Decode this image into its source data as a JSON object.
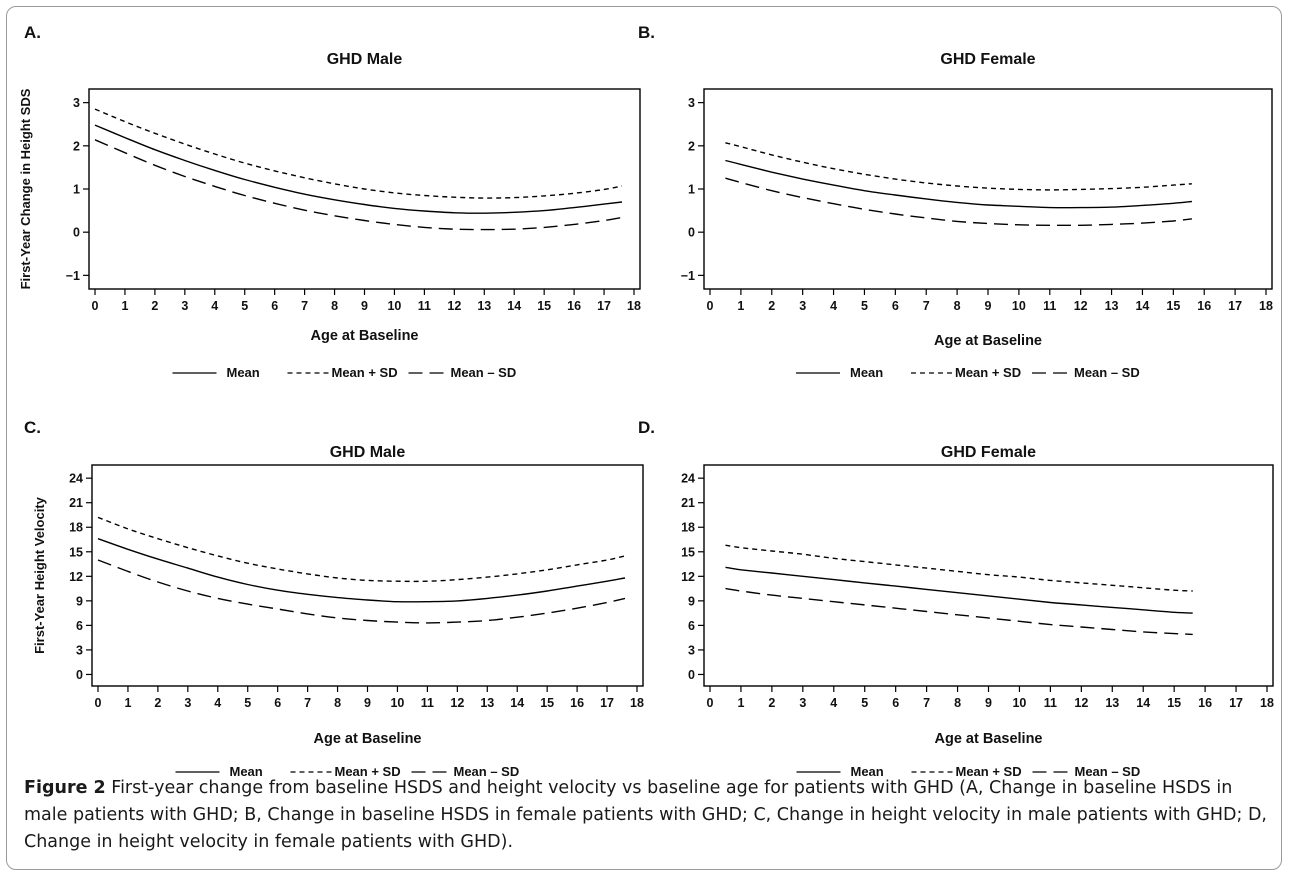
{
  "figure": {
    "caption_label": "Figure 2",
    "caption_text": " First-year change from baseline HSDS and height velocity vs baseline age for patients with GHD (A, Change in baseline HSDS in male patients with GHD; B, Change in baseline HSDS in female patients with GHD; C, Change in height velocity in male patients with GHD; D, Change in height velocity in female patients with GHD)."
  },
  "chart_data": [
    {
      "type": "line",
      "panel": "A.",
      "title": "GHD Male",
      "xlabel": "Age at Baseline",
      "ylabel": "First-Year Change in Height SDS",
      "xlim": [
        0,
        18
      ],
      "ylim": [
        -1.2,
        3.2
      ],
      "xticks": [
        0,
        1,
        2,
        3,
        4,
        5,
        6,
        7,
        8,
        9,
        10,
        11,
        12,
        13,
        14,
        15,
        16,
        17,
        18
      ],
      "yticks": [
        -1,
        0,
        1,
        2,
        3
      ],
      "legend": [
        "Mean",
        "Mean + SD",
        "Mean – SD"
      ],
      "legend_position": "bottom",
      "grid": false,
      "series": [
        {
          "name": "Mean",
          "dash": "solid",
          "x": [
            0,
            1,
            2,
            3,
            4,
            5,
            6,
            7,
            8,
            9,
            10,
            11,
            12,
            13,
            14,
            15,
            16,
            17,
            17.6
          ],
          "y": [
            2.48,
            2.19,
            1.91,
            1.66,
            1.43,
            1.22,
            1.04,
            0.88,
            0.75,
            0.64,
            0.55,
            0.49,
            0.45,
            0.44,
            0.46,
            0.5,
            0.57,
            0.65,
            0.7
          ]
        },
        {
          "name": "Mean + SD",
          "dash": "short",
          "x": [
            0,
            1,
            2,
            3,
            4,
            5,
            6,
            7,
            8,
            9,
            10,
            11,
            12,
            13,
            14,
            15,
            16,
            17,
            17.6
          ],
          "y": [
            2.85,
            2.56,
            2.29,
            2.04,
            1.81,
            1.6,
            1.42,
            1.26,
            1.12,
            1.0,
            0.91,
            0.85,
            0.81,
            0.79,
            0.8,
            0.84,
            0.9,
            0.99,
            1.07
          ]
        },
        {
          "name": "Mean – SD",
          "dash": "long",
          "x": [
            0,
            1,
            2,
            3,
            4,
            5,
            6,
            7,
            8,
            9,
            10,
            11,
            12,
            13,
            14,
            15,
            16,
            17,
            17.6
          ],
          "y": [
            2.14,
            1.84,
            1.55,
            1.29,
            1.06,
            0.85,
            0.67,
            0.51,
            0.38,
            0.27,
            0.18,
            0.11,
            0.07,
            0.06,
            0.07,
            0.11,
            0.18,
            0.27,
            0.34
          ]
        }
      ]
    },
    {
      "type": "line",
      "panel": "B.",
      "title": "GHD Female",
      "xlabel": "Age at Baseline",
      "ylabel": "",
      "xlim": [
        0,
        18
      ],
      "ylim": [
        -1.2,
        3.2
      ],
      "xticks": [
        0,
        1,
        2,
        3,
        4,
        5,
        6,
        7,
        8,
        9,
        10,
        11,
        12,
        13,
        14,
        15,
        16,
        17,
        18
      ],
      "yticks": [
        -1,
        0,
        1,
        2,
        3
      ],
      "legend": [
        "Mean",
        "Mean + SD",
        "Mean – SD"
      ],
      "legend_position": "bottom",
      "grid": false,
      "series": [
        {
          "name": "Mean",
          "dash": "solid",
          "x": [
            0.5,
            1,
            2,
            3,
            4,
            5,
            6,
            7,
            8,
            9,
            10,
            11,
            12,
            13,
            14,
            15,
            15.6
          ],
          "y": [
            1.66,
            1.57,
            1.39,
            1.23,
            1.09,
            0.96,
            0.86,
            0.77,
            0.69,
            0.63,
            0.6,
            0.57,
            0.57,
            0.58,
            0.62,
            0.67,
            0.71
          ]
        },
        {
          "name": "Mean + SD",
          "dash": "short",
          "x": [
            0.5,
            1,
            2,
            3,
            4,
            5,
            6,
            7,
            8,
            9,
            10,
            11,
            12,
            13,
            14,
            15,
            15.6
          ],
          "y": [
            2.07,
            1.98,
            1.79,
            1.62,
            1.47,
            1.34,
            1.23,
            1.14,
            1.07,
            1.02,
            0.99,
            0.98,
            0.99,
            1.01,
            1.04,
            1.09,
            1.12
          ]
        },
        {
          "name": "Mean – SD",
          "dash": "long",
          "x": [
            0.5,
            1,
            2,
            3,
            4,
            5,
            6,
            7,
            8,
            9,
            10,
            11,
            12,
            13,
            14,
            15,
            15.6
          ],
          "y": [
            1.25,
            1.15,
            0.96,
            0.8,
            0.66,
            0.53,
            0.42,
            0.33,
            0.25,
            0.2,
            0.17,
            0.16,
            0.16,
            0.18,
            0.21,
            0.26,
            0.31
          ]
        }
      ]
    },
    {
      "type": "line",
      "panel": "C.",
      "title": "GHD Male",
      "xlabel": "Age at Baseline",
      "ylabel": "First-Year Height Velocity",
      "xlim": [
        0,
        18
      ],
      "ylim": [
        -0.8,
        25
      ],
      "xticks": [
        0,
        1,
        2,
        3,
        4,
        5,
        6,
        7,
        8,
        9,
        10,
        11,
        12,
        13,
        14,
        15,
        16,
        17,
        18
      ],
      "yticks": [
        0,
        3,
        6,
        9,
        12,
        15,
        18,
        21,
        24
      ],
      "legend": [
        "Mean",
        "Mean + SD",
        "Mean – SD"
      ],
      "legend_position": "bottom",
      "grid": false,
      "series": [
        {
          "name": "Mean",
          "dash": "solid",
          "x": [
            0,
            1,
            2,
            3,
            4,
            5,
            6,
            7,
            8,
            9,
            10,
            11,
            12,
            13,
            14,
            15,
            16,
            17,
            17.6
          ],
          "y": [
            16.6,
            15.3,
            14.1,
            13.0,
            11.9,
            11.0,
            10.3,
            9.8,
            9.4,
            9.1,
            8.9,
            8.9,
            9.0,
            9.3,
            9.7,
            10.2,
            10.8,
            11.4,
            11.8
          ]
        },
        {
          "name": "Mean + SD",
          "dash": "short",
          "x": [
            0,
            1,
            2,
            3,
            4,
            5,
            6,
            7,
            8,
            9,
            10,
            11,
            12,
            13,
            14,
            15,
            16,
            17,
            17.6
          ],
          "y": [
            19.2,
            17.8,
            16.6,
            15.5,
            14.5,
            13.6,
            12.9,
            12.3,
            11.8,
            11.5,
            11.4,
            11.4,
            11.6,
            11.9,
            12.3,
            12.8,
            13.4,
            14.0,
            14.5
          ]
        },
        {
          "name": "Mean – SD",
          "dash": "long",
          "x": [
            0,
            1,
            2,
            3,
            4,
            5,
            6,
            7,
            8,
            9,
            10,
            11,
            12,
            13,
            14,
            15,
            16,
            17,
            17.6
          ],
          "y": [
            14.0,
            12.6,
            11.3,
            10.2,
            9.3,
            8.6,
            8.0,
            7.4,
            6.9,
            6.6,
            6.4,
            6.3,
            6.4,
            6.6,
            7.0,
            7.5,
            8.1,
            8.8,
            9.3
          ]
        }
      ]
    },
    {
      "type": "line",
      "panel": "D.",
      "title": "GHD Female",
      "xlabel": "Age at Baseline",
      "ylabel": "",
      "xlim": [
        0,
        18
      ],
      "ylim": [
        -0.8,
        25
      ],
      "xticks": [
        0,
        1,
        2,
        3,
        4,
        5,
        6,
        7,
        8,
        9,
        10,
        11,
        12,
        13,
        14,
        15,
        16,
        17,
        18
      ],
      "yticks": [
        0,
        3,
        6,
        9,
        12,
        15,
        18,
        21,
        24
      ],
      "legend": [
        "Mean",
        "Mean + SD",
        "Mean – SD"
      ],
      "legend_position": "bottom",
      "grid": false,
      "series": [
        {
          "name": "Mean",
          "dash": "solid",
          "x": [
            0.5,
            1,
            2,
            3,
            4,
            5,
            6,
            7,
            8,
            9,
            10,
            11,
            12,
            13,
            14,
            15,
            15.6
          ],
          "y": [
            13.1,
            12.8,
            12.4,
            12.0,
            11.6,
            11.2,
            10.8,
            10.4,
            10.0,
            9.6,
            9.2,
            8.8,
            8.5,
            8.2,
            7.9,
            7.6,
            7.5
          ]
        },
        {
          "name": "Mean + SD",
          "dash": "short",
          "x": [
            0.5,
            1,
            2,
            3,
            4,
            5,
            6,
            7,
            8,
            9,
            10,
            11,
            12,
            13,
            14,
            15,
            15.6
          ],
          "y": [
            15.8,
            15.5,
            15.1,
            14.7,
            14.2,
            13.8,
            13.4,
            13.0,
            12.6,
            12.2,
            11.9,
            11.5,
            11.2,
            10.9,
            10.6,
            10.3,
            10.2
          ]
        },
        {
          "name": "Mean – SD",
          "dash": "long",
          "x": [
            0.5,
            1,
            2,
            3,
            4,
            5,
            6,
            7,
            8,
            9,
            10,
            11,
            12,
            13,
            14,
            15,
            15.6
          ],
          "y": [
            10.5,
            10.2,
            9.7,
            9.3,
            8.9,
            8.5,
            8.1,
            7.7,
            7.3,
            6.9,
            6.5,
            6.1,
            5.8,
            5.5,
            5.2,
            5.0,
            4.9
          ]
        }
      ]
    }
  ]
}
